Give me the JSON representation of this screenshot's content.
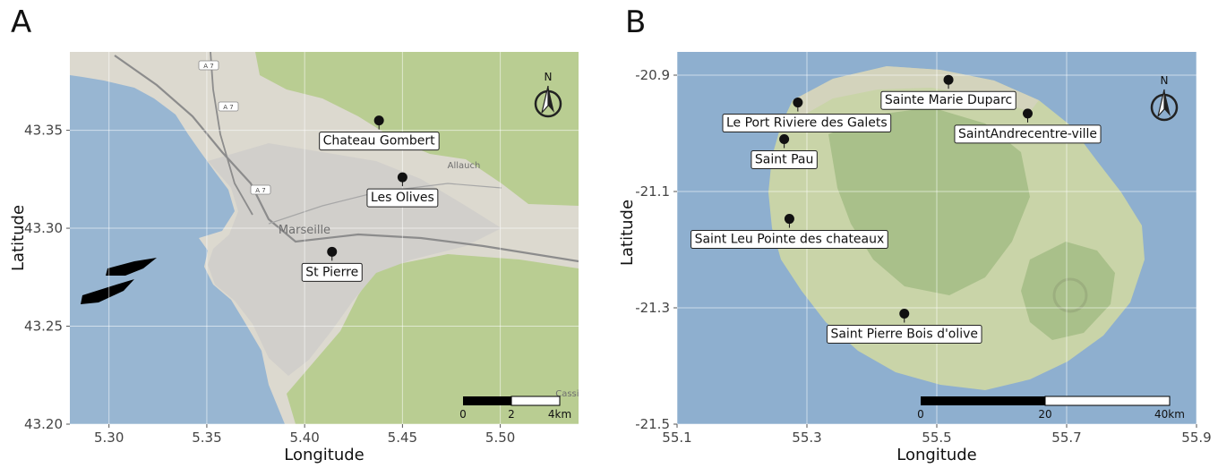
{
  "panels": [
    {
      "id": "A",
      "letter": "A",
      "xlabel": "Longitude",
      "ylabel": "Latitude",
      "xlim": [
        5.28,
        5.54
      ],
      "ylim": [
        43.2,
        43.39
      ],
      "xticks": [
        5.3,
        5.35,
        5.4,
        5.45,
        5.5
      ],
      "xtick_labels": [
        "5.30",
        "5.35",
        "5.40",
        "5.45",
        "5.50"
      ],
      "yticks": [
        43.2,
        43.25,
        43.3,
        43.35
      ],
      "ytick_labels": [
        "43.20",
        "43.25",
        "43.30",
        "43.35"
      ],
      "place_labels": [
        "Marseille",
        "Allauch",
        "Cassis"
      ],
      "road_labels": [
        "A 7",
        "A 7",
        "A 7"
      ],
      "sites": [
        {
          "name": "Chateau Gombert",
          "lon": 5.438,
          "lat": 43.355
        },
        {
          "name": "Les Olives",
          "lon": 5.45,
          "lat": 43.326
        },
        {
          "name": "St Pierre",
          "lon": 5.414,
          "lat": 43.288
        }
      ],
      "scale_bar": {
        "labels": [
          "0",
          "2",
          "4km"
        ]
      },
      "north_label": "N",
      "colors": {
        "sea": "#98b6d2",
        "land": "#dcd9cf",
        "green": "#b9cd92",
        "urban": "#d1cfcb"
      }
    },
    {
      "id": "B",
      "letter": "B",
      "xlabel": "Longitude",
      "ylabel": "Latitude",
      "xlim": [
        55.1,
        55.9
      ],
      "ylim": [
        -21.5,
        -20.86
      ],
      "xticks": [
        55.1,
        55.3,
        55.5,
        55.7,
        55.9
      ],
      "xtick_labels": [
        "55.1",
        "55.3",
        "55.5",
        "55.7",
        "55.9"
      ],
      "yticks": [
        -20.9,
        -21.1,
        -21.3,
        -21.5
      ],
      "ytick_labels": [
        "-20.9",
        "-21.1",
        "-21.3",
        "-21.5"
      ],
      "sites": [
        {
          "name": "Sainte Marie Duparc",
          "lon": 55.518,
          "lat": -20.908
        },
        {
          "name": "Le Port Riviere des Galets",
          "lon": 55.286,
          "lat": -20.947
        },
        {
          "name": "SaintAndrecentre-ville",
          "lon": 55.64,
          "lat": -20.966
        },
        {
          "name": "Saint Pau",
          "lon": 55.265,
          "lat": -21.01
        },
        {
          "name": "Saint Leu Pointe des chateaux",
          "lon": 55.273,
          "lat": -21.147
        },
        {
          "name": "Saint Pierre Bois d'olive",
          "lon": 55.45,
          "lat": -21.31
        }
      ],
      "scale_bar": {
        "labels": [
          "0",
          "20",
          "40km"
        ]
      },
      "north_label": "N",
      "colors": {
        "sea": "#8eafcf",
        "land": "#c9d4a8",
        "green": "#a9c08a",
        "urban": "#d7d3c4"
      }
    }
  ]
}
